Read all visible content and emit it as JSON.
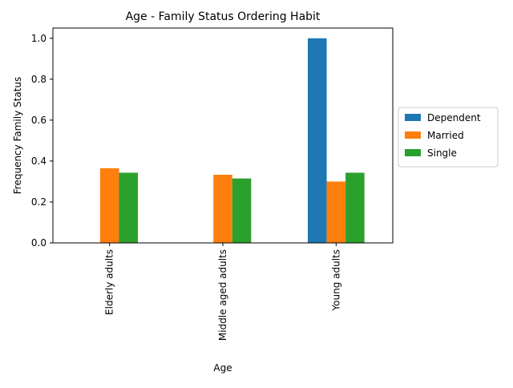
{
  "chart_data": {
    "type": "bar",
    "title": "Age - Family Status Ordering Habit",
    "xlabel": "Age",
    "ylabel": "Frequency Family Status",
    "categories": [
      "Elderly adults",
      "Middle aged adults",
      "Young adults"
    ],
    "series": [
      {
        "name": "Dependent",
        "color": "#1f77b4",
        "values": [
          0,
          0,
          1.0
        ]
      },
      {
        "name": "Married",
        "color": "#ff7f0e",
        "values": [
          0.365,
          0.333,
          0.3
        ]
      },
      {
        "name": "Single",
        "color": "#2ca02c",
        "values": [
          0.343,
          0.315,
          0.343
        ]
      }
    ],
    "yticks": [
      "0.0",
      "0.2",
      "0.4",
      "0.6",
      "0.8",
      "1.0"
    ],
    "ylim": [
      0,
      1.05
    ],
    "grid": false,
    "legend_position": "center-right-outside"
  }
}
